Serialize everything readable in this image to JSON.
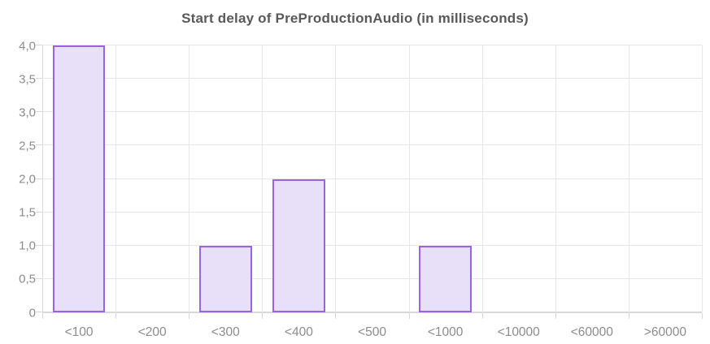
{
  "chart_data": {
    "type": "bar",
    "title": "Start delay of PreProductionAudio (in milliseconds)",
    "categories": [
      "<100",
      "<200",
      "<300",
      "<400",
      "<500",
      "<1000",
      "<10000",
      "<60000",
      ">60000"
    ],
    "values": [
      4,
      0,
      1,
      2,
      0,
      1,
      0,
      0,
      0
    ],
    "xlabel": "",
    "ylabel": "",
    "ylim": [
      0,
      4
    ],
    "ytick_step": 0.5,
    "ytick_labels": [
      "0",
      "0,5",
      "1,0",
      "1,5",
      "2,0",
      "2,5",
      "3,0",
      "3,5",
      "4,0"
    ],
    "decimal_separator": ",",
    "grid": "on",
    "legend": "none",
    "colors": {
      "bar_fill": "#e8dff8",
      "bar_border": "#9a63e6",
      "gridline": "#e7e7e7",
      "axis_line": "#d8d8d8",
      "tick_text": "#8c8c8c",
      "title_text": "#595959",
      "background": "#ffffff"
    }
  }
}
